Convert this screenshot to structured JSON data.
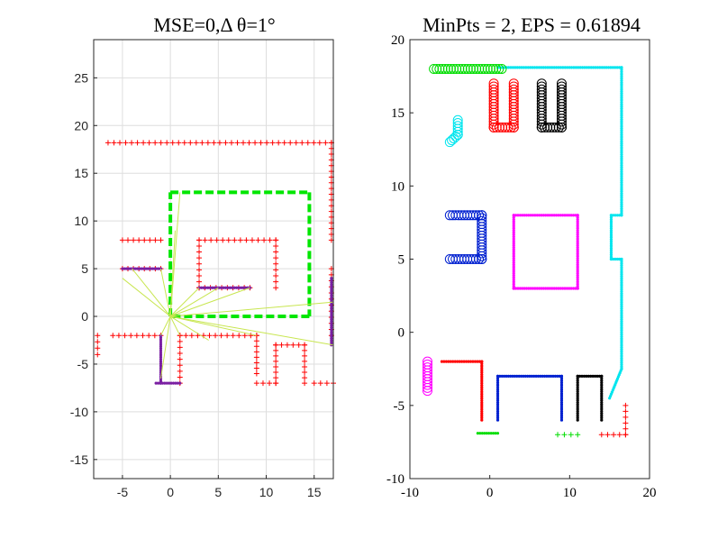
{
  "chart_data": [
    {
      "type": "scatter",
      "title": "MSE=0,Δ θ=1°",
      "xlim": [
        -8,
        17
      ],
      "ylim": [
        -17,
        29
      ],
      "xticks": [
        -5,
        0,
        5,
        10,
        15
      ],
      "yticks": [
        -15,
        -10,
        -5,
        0,
        5,
        10,
        15,
        20,
        25
      ],
      "xtick_labels": [
        "-5",
        "0",
        "5",
        "10",
        "15"
      ],
      "ytick_labels": [
        "-15",
        "-10",
        "-5",
        "0",
        "5",
        "10",
        "15",
        "20",
        "25"
      ],
      "grid": true,
      "colors": {
        "map": "#ff0000",
        "scan": "#7a1fa2",
        "pose": "#00e600",
        "ray": "#c8e650"
      },
      "series": [
        {
          "name": "map-segments",
          "color": "#ff0000",
          "marker": "plus",
          "segments": [
            [
              [
                -6.5,
                18.2
              ],
              [
                16.8,
                18.2
              ]
            ],
            [
              [
                16.8,
                18.2
              ],
              [
                16.8,
                8
              ]
            ],
            [
              [
                -5,
                8
              ],
              [
                -1,
                8
              ]
            ],
            [
              [
                -5,
                5
              ],
              [
                -1,
                5
              ]
            ],
            [
              [
                3,
                8
              ],
              [
                11,
                8
              ]
            ],
            [
              [
                3,
                8
              ],
              [
                3,
                3
              ]
            ],
            [
              [
                3,
                3
              ],
              [
                8.3,
                3
              ]
            ],
            [
              [
                11,
                8
              ],
              [
                11,
                3
              ]
            ],
            [
              [
                16.8,
                5
              ],
              [
                16.8,
                -2
              ]
            ],
            [
              [
                -6,
                -2
              ],
              [
                -1,
                -2
              ]
            ],
            [
              [
                1,
                -2
              ],
              [
                9,
                -2
              ]
            ],
            [
              [
                1,
                -2
              ],
              [
                1,
                -7
              ]
            ],
            [
              [
                9,
                -2
              ],
              [
                9,
                -6
              ]
            ],
            [
              [
                11,
                -3
              ],
              [
                14,
                -3
              ]
            ],
            [
              [
                11,
                -3
              ],
              [
                11,
                -7
              ]
            ],
            [
              [
                14,
                -3
              ],
              [
                14,
                -7
              ]
            ],
            [
              [
                15,
                -7
              ],
              [
                17,
                -7
              ]
            ],
            [
              [
                -7.6,
                -2
              ],
              [
                -7.6,
                -4
              ]
            ],
            [
              [
                9,
                -7
              ],
              [
                11,
                -7
              ]
            ]
          ]
        },
        {
          "name": "scan-points",
          "color": "#7a1fa2",
          "marker": "dot",
          "segments": [
            [
              [
                -5,
                5
              ],
              [
                -1,
                5
              ]
            ],
            [
              [
                3,
                3
              ],
              [
                8.3,
                3
              ]
            ],
            [
              [
                -1,
                -2
              ],
              [
                -1,
                -7
              ]
            ],
            [
              [
                -1.5,
                -7
              ],
              [
                1,
                -7
              ]
            ],
            [
              [
                16.8,
                4
              ],
              [
                16.8,
                -3
              ]
            ]
          ]
        },
        {
          "name": "pose-trajectory",
          "color": "#00e600",
          "marker": "dash",
          "segments": [
            [
              [
                0,
                0
              ],
              [
                0,
                13
              ]
            ],
            [
              [
                0,
                13
              ],
              [
                14.5,
                13
              ]
            ],
            [
              [
                14.5,
                13
              ],
              [
                14.5,
                0
              ]
            ],
            [
              [
                14.5,
                0
              ],
              [
                0,
                0
              ]
            ]
          ]
        },
        {
          "name": "scan-rays",
          "color": "#c8e650",
          "marker": "line",
          "origin": [
            0,
            0
          ],
          "targets": [
            [
              1,
              13
            ],
            [
              0.5,
              9
            ],
            [
              -1,
              5
            ],
            [
              -4,
              5
            ],
            [
              -5,
              4
            ],
            [
              3,
              3
            ],
            [
              5,
              3
            ],
            [
              8.3,
              3
            ],
            [
              17,
              1.5
            ],
            [
              17,
              -3
            ],
            [
              -1,
              -2
            ],
            [
              -1,
              -6.5
            ],
            [
              1,
              -2
            ],
            [
              4,
              -2.5
            ],
            [
              9,
              -2
            ]
          ]
        }
      ]
    },
    {
      "type": "scatter",
      "title": "MinPts = 2, EPS = 0.61894",
      "xlim": [
        -10,
        20
      ],
      "ylim": [
        -10,
        20
      ],
      "xticks": [
        -10,
        0,
        10,
        20
      ],
      "yticks": [
        -10,
        -5,
        0,
        5,
        10,
        15,
        20
      ],
      "xtick_labels": [
        "-10",
        "0",
        "10",
        "20"
      ],
      "ytick_labels": [
        "-10",
        "-5",
        "0",
        "5",
        "10",
        "15",
        "20"
      ],
      "grid": false,
      "colors": {
        "cyan": "#00e5ee",
        "green": "#00dd00",
        "red": "#ff0000",
        "black": "#000000",
        "blue": "#0020d0",
        "magenta": "#ff00ff"
      },
      "series": [
        {
          "name": "cluster-cyan-wall",
          "color": "#00e5ee",
          "marker": "dot",
          "segments": [
            [
              [
                1,
                18.1
              ],
              [
                16.5,
                18.1
              ]
            ],
            [
              [
                16.5,
                18.1
              ],
              [
                16.5,
                8
              ]
            ],
            [
              [
                16.5,
                8
              ],
              [
                15.2,
                8
              ]
            ],
            [
              [
                15.2,
                8
              ],
              [
                15.2,
                5
              ]
            ],
            [
              [
                15.2,
                5
              ],
              [
                16.5,
                5
              ]
            ],
            [
              [
                16.5,
                5
              ],
              [
                16.5,
                -2.5
              ]
            ],
            [
              [
                16.5,
                -2.5
              ],
              [
                15,
                -4.5
              ]
            ]
          ]
        },
        {
          "name": "cluster-green-top",
          "color": "#00dd00",
          "marker": "circle",
          "segments": [
            [
              [
                -7,
                18
              ],
              [
                1.5,
                18
              ]
            ]
          ]
        },
        {
          "name": "cluster-cyan-small",
          "color": "#00e5ee",
          "marker": "circle",
          "segments": [
            [
              [
                -4,
                14.5
              ],
              [
                -4,
                13.5
              ]
            ],
            [
              [
                -4,
                13.5
              ],
              [
                -5,
                13
              ]
            ]
          ]
        },
        {
          "name": "cluster-red-u",
          "color": "#ff0000",
          "marker": "circle",
          "segments": [
            [
              [
                0.5,
                17
              ],
              [
                0.5,
                14
              ]
            ],
            [
              [
                0.5,
                14
              ],
              [
                3,
                14
              ]
            ],
            [
              [
                3,
                14
              ],
              [
                3,
                17
              ]
            ]
          ]
        },
        {
          "name": "cluster-black-u",
          "color": "#000000",
          "marker": "circle",
          "segments": [
            [
              [
                6.5,
                17
              ],
              [
                6.5,
                14
              ]
            ],
            [
              [
                6.5,
                14
              ],
              [
                9,
                14
              ]
            ],
            [
              [
                9,
                14
              ],
              [
                9,
                17
              ]
            ]
          ]
        },
        {
          "name": "cluster-blue-c",
          "color": "#0020d0",
          "marker": "circle",
          "segments": [
            [
              [
                -1,
                8
              ],
              [
                -5,
                8
              ]
            ],
            [
              [
                -1,
                8
              ],
              [
                -1,
                5
              ]
            ],
            [
              [
                -1,
                5
              ],
              [
                -5,
                5
              ]
            ]
          ]
        },
        {
          "name": "cluster-magenta-square",
          "color": "#ff00ff",
          "marker": "dot",
          "segments": [
            [
              [
                3,
                8
              ],
              [
                11,
                8
              ]
            ],
            [
              [
                11,
                8
              ],
              [
                11,
                3
              ]
            ],
            [
              [
                11,
                3
              ],
              [
                3,
                3
              ]
            ],
            [
              [
                3,
                3
              ],
              [
                3,
                8
              ]
            ]
          ]
        },
        {
          "name": "cluster-magenta-small",
          "color": "#ff00ff",
          "marker": "circle",
          "segments": [
            [
              [
                -7.8,
                -2
              ],
              [
                -7.8,
                -4
              ]
            ]
          ]
        },
        {
          "name": "cluster-red-l",
          "color": "#ff0000",
          "marker": "dot",
          "segments": [
            [
              [
                -6,
                -2
              ],
              [
                -1,
                -2
              ]
            ],
            [
              [
                -1,
                -2
              ],
              [
                -1,
                -6
              ]
            ]
          ]
        },
        {
          "name": "cluster-blue-u",
          "color": "#0020d0",
          "marker": "dot",
          "segments": [
            [
              [
                1,
                -6
              ],
              [
                1,
                -3
              ]
            ],
            [
              [
                1,
                -3
              ],
              [
                9,
                -3
              ]
            ],
            [
              [
                9,
                -3
              ],
              [
                9,
                -6
              ]
            ]
          ]
        },
        {
          "name": "cluster-black-u2",
          "color": "#000000",
          "marker": "dot",
          "segments": [
            [
              [
                11,
                -6
              ],
              [
                11,
                -3
              ]
            ],
            [
              [
                11,
                -3
              ],
              [
                14,
                -3
              ]
            ],
            [
              [
                14,
                -3
              ],
              [
                14,
                -6
              ]
            ]
          ]
        },
        {
          "name": "cluster-green-bottom",
          "color": "#00dd00",
          "marker": "dot",
          "segments": [
            [
              [
                -1.5,
                -6.9
              ],
              [
                1,
                -6.9
              ]
            ]
          ]
        },
        {
          "name": "cluster-green-bottom-plus",
          "color": "#00dd00",
          "marker": "plus",
          "segments": [
            [
              [
                8.5,
                -7
              ],
              [
                11,
                -7
              ]
            ]
          ]
        },
        {
          "name": "cluster-red-bottom-plus",
          "color": "#ff0000",
          "marker": "plus",
          "segments": [
            [
              [
                14,
                -7
              ],
              [
                17,
                -7
              ]
            ],
            [
              [
                17,
                -7
              ],
              [
                17,
                -5
              ]
            ]
          ]
        }
      ]
    }
  ]
}
